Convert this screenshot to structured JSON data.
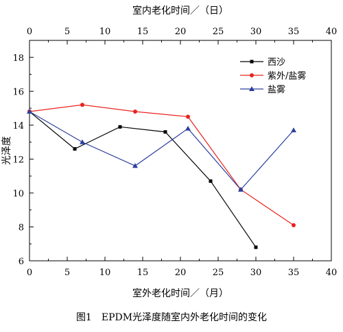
{
  "chart_data": {
    "type": "line",
    "caption": "图1　EPDM光泽度随室内外老化时间的变化",
    "xlabel_bottom": "室外老化时间／（月）",
    "xlabel_top": "室内老化时间／（日）",
    "ylabel": "光泽度",
    "xlim": [
      0,
      40
    ],
    "ylim": [
      6,
      19
    ],
    "x_ticks": [
      0,
      5,
      10,
      15,
      20,
      25,
      30,
      35,
      40
    ],
    "y_ticks": [
      6,
      8,
      10,
      12,
      14,
      16,
      18
    ],
    "grid": false,
    "legend_position": "top-right",
    "series": [
      {
        "name": "西沙",
        "color": "#000000",
        "marker": "square",
        "x": [
          0,
          6,
          12,
          18,
          24,
          30
        ],
        "y": [
          14.8,
          12.6,
          13.9,
          13.6,
          10.7,
          6.8
        ]
      },
      {
        "name": "紫外/盐雾",
        "color": "#e8231f",
        "marker": "circle",
        "x": [
          0,
          7,
          14,
          21,
          28,
          35
        ],
        "y": [
          14.8,
          15.2,
          14.8,
          14.5,
          10.2,
          8.1
        ]
      },
      {
        "name": "盐雾",
        "color": "#2b3f9e",
        "marker": "triangle",
        "x": [
          0,
          7,
          14,
          21,
          28,
          35
        ],
        "y": [
          14.8,
          13.0,
          11.6,
          13.8,
          10.2,
          13.7
        ]
      }
    ]
  }
}
